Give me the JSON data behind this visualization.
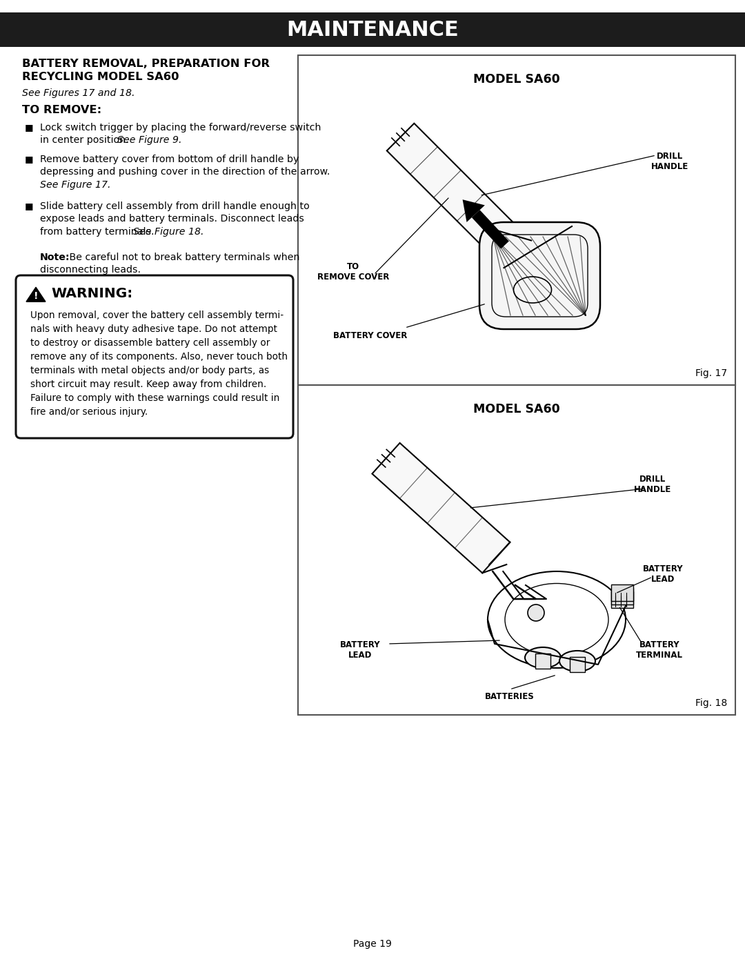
{
  "page_bg": "#ffffff",
  "header_bg": "#1c1c1c",
  "header_text": "MAINTENANCE",
  "header_text_color": "#ffffff",
  "page_number": "Page 19",
  "section_title_line1": "BATTERY REMOVAL, PREPARATION FOR",
  "section_title_line2": "RECYCLING MODEL SA60",
  "see_figures_text": "See Figures 17 and 18.",
  "to_remove_title": "TO REMOVE:",
  "bullet1_line1": "Lock switch trigger by placing the forward/reverse switch",
  "bullet1_line2_plain": "in center position. ",
  "bullet1_line2_italic": "See Figure 9.",
  "bullet2_line1": "Remove battery cover from bottom of drill handle by",
  "bullet2_line2": "depressing and pushing cover in the direction of the arrow.",
  "bullet2_line3_italic": "See Figure 17.",
  "bullet3_line1": "Slide battery cell assembly from drill handle enough to",
  "bullet3_line2": "expose leads and battery terminals. Disconnect leads",
  "bullet3_line3_plain": "from battery terminals. ",
  "bullet3_line3_italic": "See Figure 18.",
  "note_bold": "Note:",
  "note_line1_rest": " Be careful not to break battery terminals when",
  "note_line2": "disconnecting leads.",
  "warning_title": "WARNING:",
  "warning_lines": [
    "Upon removal, cover the battery cell assembly termi-",
    "nals with heavy duty adhesive tape. Do not attempt",
    "to destroy or disassemble battery cell assembly or",
    "remove any of its components. Also, never touch both",
    "terminals with metal objects and/or body parts, as",
    "short circuit may result. Keep away from children.",
    "Failure to comply with these warnings could result in",
    "fire and/or serious injury."
  ],
  "fig17_title": "MODEL SA60",
  "fig17_label": "Fig. 17",
  "fig17_drill_handle_label": "DRILL\nHANDLE",
  "fig17_remove_cover_label": "TO\nREMOVE COVER",
  "fig17_battery_cover_label": "BATTERY COVER",
  "fig18_title": "MODEL SA60",
  "fig18_label": "Fig. 18",
  "fig18_drill_handle_label": "DRILL\nHANDLE",
  "fig18_battery_lead_right_label": "BATTERY\nLEAD",
  "fig18_battery_lead_left_label": "BATTERY\nLEAD",
  "fig18_battery_terminal_label": "BATTERY\nTERMINAL",
  "fig18_batteries_label": "BATTERIES",
  "text_color": "#000000",
  "border_color": "#555555"
}
